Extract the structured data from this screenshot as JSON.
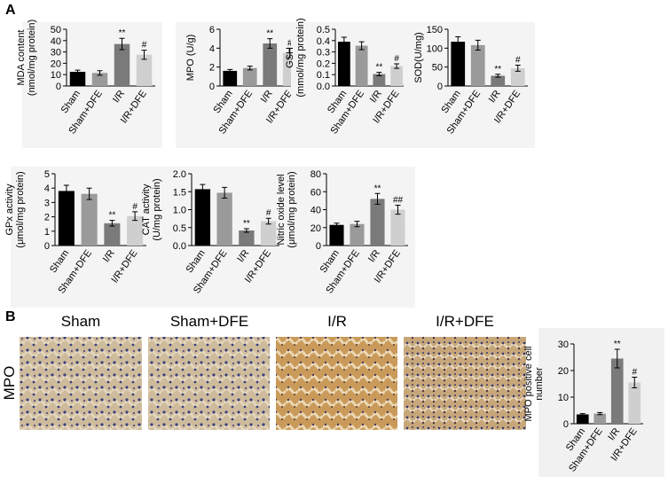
{
  "panels": [
    "A",
    "B"
  ],
  "row_label": "MPO",
  "images": [
    "Sham",
    "Sham+DFE",
    "I/R",
    "I/R+DFE"
  ],
  "chart_data": [
    {
      "type": "bar",
      "ylabel": [
        "MDA content",
        "(nmol/mg protein)"
      ],
      "categories": [
        "Sham",
        "Sham+DFE",
        "I/R",
        "I/R+DFE"
      ],
      "colors": [
        "#000000",
        "#9a9a9a",
        "#7a7a7a",
        "#cfcfcf"
      ],
      "values": [
        12.5,
        11.5,
        37,
        27.5
      ],
      "errors": [
        1.5,
        2,
        5,
        4
      ],
      "annotations": [
        null,
        null,
        "**",
        "#"
      ],
      "ylim": [
        0,
        50
      ],
      "yticks": [
        0,
        10,
        20,
        30,
        40,
        50
      ]
    },
    {
      "type": "bar",
      "ylabel": [
        "MPO (U/g)"
      ],
      "categories": [
        "Sham",
        "Sham+DFE",
        "I/R",
        "I/R+DFE"
      ],
      "colors": [
        "#000000",
        "#9a9a9a",
        "#7a7a7a",
        "#cfcfcf"
      ],
      "values": [
        1.6,
        1.9,
        4.5,
        3.5
      ],
      "errors": [
        0.15,
        0.2,
        0.5,
        0.5
      ],
      "annotations": [
        null,
        null,
        "**",
        "#"
      ],
      "ylim": [
        0,
        6
      ],
      "yticks": [
        0,
        2,
        4,
        6
      ]
    },
    {
      "type": "bar",
      "ylabel": [
        "GSH",
        "(mmol/mg protein)"
      ],
      "categories": [
        "Sham",
        "Sham+DFE",
        "I/R",
        "I/R+DFE"
      ],
      "colors": [
        "#000000",
        "#9a9a9a",
        "#7a7a7a",
        "#cfcfcf"
      ],
      "values": [
        0.39,
        0.355,
        0.105,
        0.175
      ],
      "errors": [
        0.04,
        0.035,
        0.015,
        0.02
      ],
      "annotations": [
        null,
        null,
        "**",
        "#"
      ],
      "ylim": [
        0,
        0.5
      ],
      "yticks": [
        {
          "value": 0,
          "label": "0.0"
        },
        0.1,
        0.2,
        0.3,
        0.4,
        0.5
      ]
    },
    {
      "type": "bar",
      "ylabel": [
        "SOD(U/mg)"
      ],
      "categories": [
        "Sham",
        "Sham+DFE",
        "I/R",
        "I/R+DFE"
      ],
      "colors": [
        "#000000",
        "#9a9a9a",
        "#7a7a7a",
        "#cfcfcf"
      ],
      "values": [
        117,
        108,
        27,
        47
      ],
      "errors": [
        13,
        13,
        4,
        8
      ],
      "annotations": [
        null,
        null,
        "**",
        "#"
      ],
      "ylim": [
        0,
        150
      ],
      "yticks": [
        0,
        50,
        100,
        150
      ]
    },
    {
      "type": "bar",
      "ylabel": [
        "GPx activity",
        "(μmol/mg protein)"
      ],
      "categories": [
        "Sham",
        "Sham+DFE",
        "I/R",
        "I/R+DFE"
      ],
      "colors": [
        "#000000",
        "#9a9a9a",
        "#7a7a7a",
        "#cfcfcf"
      ],
      "values": [
        3.8,
        3.6,
        1.55,
        2.05
      ],
      "errors": [
        0.4,
        0.4,
        0.2,
        0.3
      ],
      "annotations": [
        null,
        null,
        "**",
        "#"
      ],
      "ylim": [
        0,
        5
      ],
      "yticks": [
        0,
        1,
        2,
        3,
        4,
        5
      ]
    },
    {
      "type": "bar",
      "ylabel": [
        "CAT activity",
        "(U/mg protein)"
      ],
      "categories": [
        "Sham",
        "Sham+DFE",
        "I/R",
        "I/R+DFE"
      ],
      "colors": [
        "#000000",
        "#9a9a9a",
        "#7a7a7a",
        "#cfcfcf"
      ],
      "values": [
        1.57,
        1.47,
        0.42,
        0.68
      ],
      "errors": [
        0.13,
        0.15,
        0.05,
        0.08
      ],
      "annotations": [
        null,
        null,
        "**",
        "#"
      ],
      "ylim": [
        0,
        2
      ],
      "yticks": [
        {
          "value": 0,
          "label": "0.0"
        },
        0.5,
        {
          "value": 1,
          "label": "1.0"
        },
        1.5,
        {
          "value": 2,
          "label": "2.0"
        }
      ]
    },
    {
      "type": "bar",
      "ylabel": [
        "Nitric oxide level",
        "(μmol/mg protein)"
      ],
      "categories": [
        "Sham",
        "Sham+DFE",
        "I/R",
        "I/R+DFE"
      ],
      "colors": [
        "#000000",
        "#9a9a9a",
        "#7a7a7a",
        "#cfcfcf"
      ],
      "values": [
        23,
        24,
        52,
        40
      ],
      "errors": [
        2,
        3,
        6,
        5
      ],
      "annotations": [
        null,
        null,
        "**",
        "##"
      ],
      "ylim": [
        0,
        80
      ],
      "yticks": [
        0,
        20,
        40,
        60,
        80
      ]
    },
    {
      "type": "bar",
      "ylabel": [
        "MPO positive cell",
        "number"
      ],
      "categories": [
        "Sham",
        "Sham+DFE",
        "I/R",
        "I/R+DFE"
      ],
      "colors": [
        "#000000",
        "#9a9a9a",
        "#7a7a7a",
        "#cfcfcf"
      ],
      "values": [
        3.5,
        3.8,
        24.5,
        15.5
      ],
      "errors": [
        0.3,
        0.4,
        3.5,
        2
      ],
      "annotations": [
        null,
        null,
        "**",
        "#"
      ],
      "ylim": [
        0,
        30
      ],
      "yticks": [
        0,
        10,
        20,
        30
      ]
    }
  ]
}
